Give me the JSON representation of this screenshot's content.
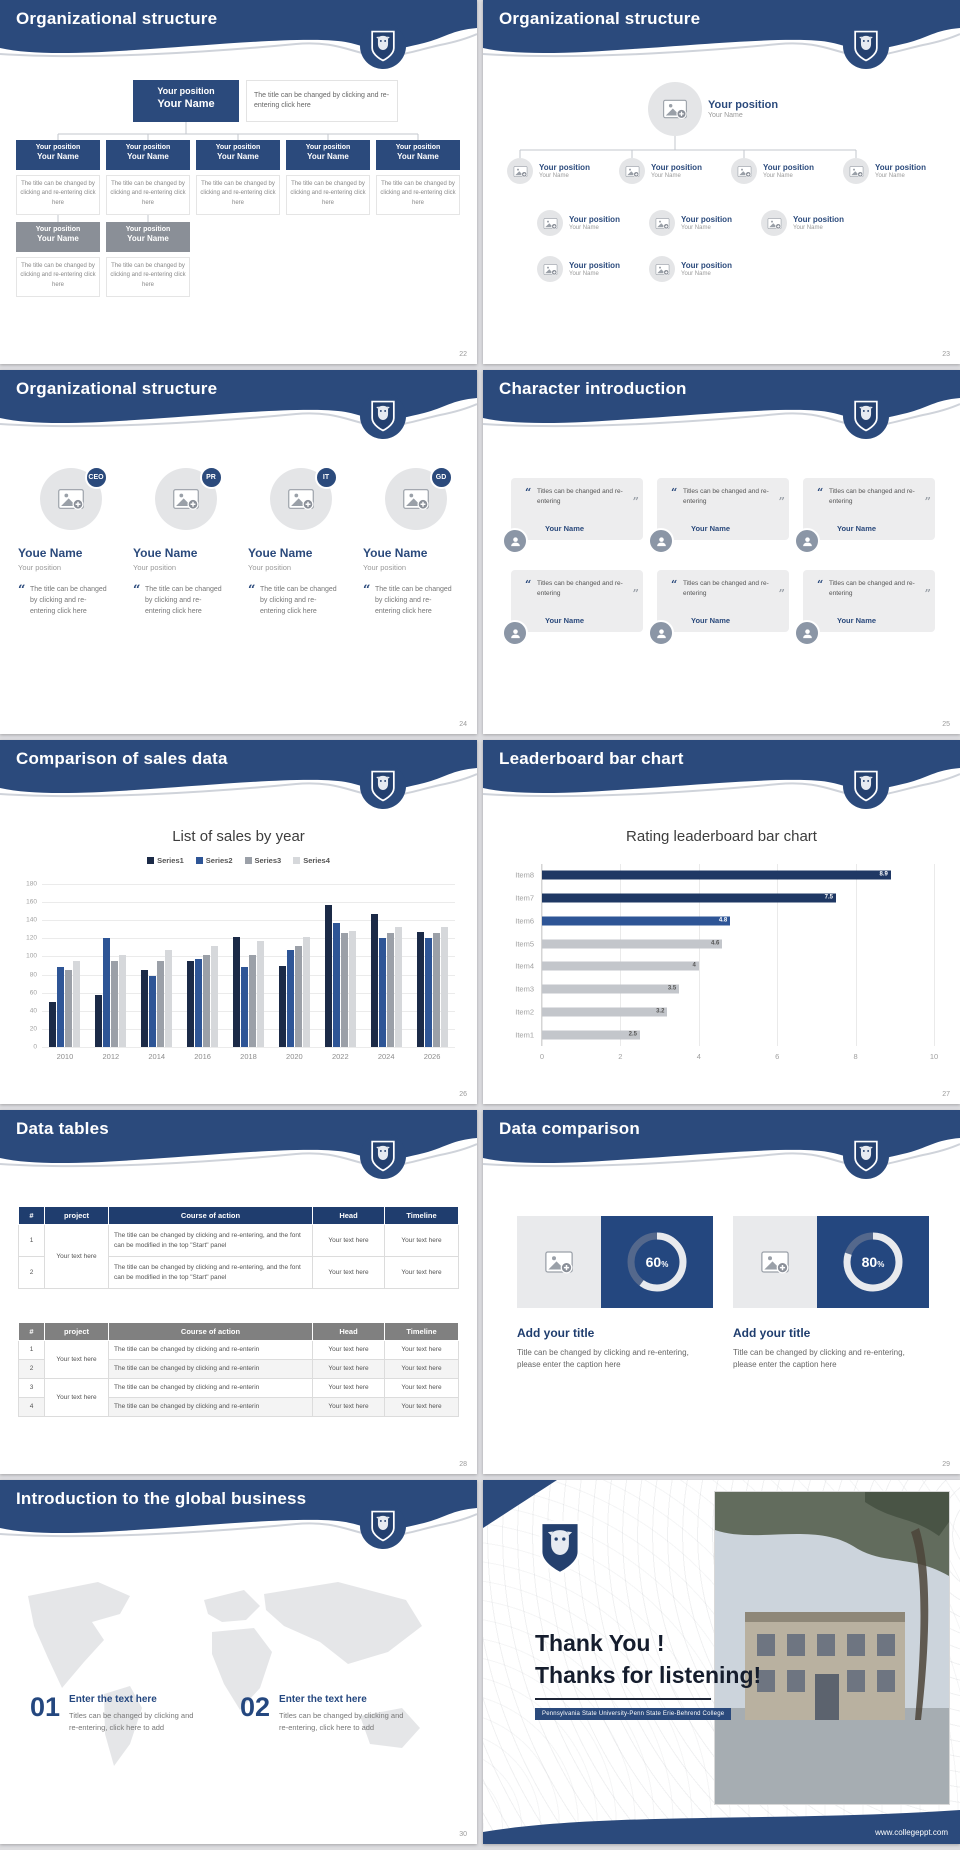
{
  "page": {
    "background": "#dcdcdf",
    "accent": "#2b4a7c",
    "gray": "#8a8f97"
  },
  "slides": {
    "s22": {
      "title": "Organizational structure",
      "page_num": "22",
      "root": {
        "position": "Your position",
        "name": "Your Name"
      },
      "root_note": "The title can be changed by clicking and re-entering click here",
      "node": {
        "position": "Your position",
        "name": "Your Name"
      },
      "note": "The title can be changed by clicking and re-entering click here"
    },
    "s23": {
      "title": "Organizational structure",
      "page_num": "23",
      "node": {
        "position": "Your position",
        "name": "Your Name"
      }
    },
    "s24": {
      "title": "Organizational structure",
      "page_num": "24",
      "badges": [
        "CEO",
        "PR",
        "IT",
        "GD"
      ],
      "name": "Youe Name",
      "position": "Your position",
      "note": "The title can be changed by clicking and re-entering click here"
    },
    "s25": {
      "title": "Character introduction",
      "page_num": "25",
      "card_text": "Titles can be changed and re-entering",
      "card_name": "Your Name"
    },
    "s26": {
      "title": "Comparison of sales data",
      "page_num": "26",
      "chart_data": {
        "type": "bar",
        "title": "List of sales by year",
        "categories": [
          "2010",
          "2012",
          "2014",
          "2016",
          "2018",
          "2020",
          "2022",
          "2024",
          "2026"
        ],
        "series": [
          {
            "name": "Series1",
            "color": "#1b2a47",
            "values": [
              50,
              57,
              85,
              95,
              122,
              90,
              157,
              147,
              127
            ]
          },
          {
            "name": "Series2",
            "color": "#2e5596",
            "values": [
              88,
              120,
              78,
              97,
              88,
              107,
              137,
              120,
              120
            ]
          },
          {
            "name": "Series3",
            "color": "#9ba0a8",
            "values": [
              85,
              95,
              95,
              102,
              102,
              112,
              126,
              126,
              126
            ]
          },
          {
            "name": "Series4",
            "color": "#d6d8db",
            "values": [
              95,
              102,
              107,
              112,
              117,
              122,
              128,
              132,
              132
            ]
          }
        ],
        "ylim": [
          0,
          180
        ],
        "yticks": [
          0,
          20,
          40,
          60,
          80,
          100,
          120,
          140,
          160,
          180
        ],
        "legend_position": "top",
        "grid": true
      }
    },
    "s27": {
      "title": "Leaderboard bar chart",
      "page_num": "27",
      "chart_data": {
        "type": "hbar",
        "title": "Rating leaderboard bar chart",
        "categories": [
          "Item8",
          "Item7",
          "Item6",
          "Item5",
          "Item4",
          "Item3",
          "Item2",
          "Item1"
        ],
        "values": [
          8.9,
          7.5,
          4.8,
          4.6,
          4,
          3.5,
          3.2,
          2.5
        ],
        "bar_colors": [
          "#1f3864",
          "#1f3864",
          "#2e5596",
          "#c3c6cb",
          "#c3c6cb",
          "#c3c6cb",
          "#c3c6cb",
          "#c3c6cb"
        ],
        "xlim": [
          0,
          10
        ],
        "xticks": [
          0,
          2,
          4,
          6,
          8,
          10
        ],
        "grid": true
      }
    },
    "s28": {
      "title": "Data tables",
      "page_num": "28",
      "table1": {
        "headers": [
          "#",
          "project",
          "Course of action",
          "Head",
          "Timeline"
        ],
        "project": "Your text here",
        "rows": [
          {
            "num": "1",
            "course": "The title can be changed by clicking and re-entering, and the font can be modified in the top \"Start\" panel",
            "head": "Your text here",
            "timeline": "Your text here"
          },
          {
            "num": "2",
            "course": "The title can be changed by clicking and re-entering, and the font can be modified in the top \"Start\" panel",
            "head": "Your text here",
            "timeline": "Your text here"
          }
        ]
      },
      "table2": {
        "headers": [
          "#",
          "project",
          "Course of action",
          "Head",
          "Timeline"
        ],
        "project": "Your text here",
        "rows": [
          {
            "num": "1",
            "course": "The title can be changed by clicking and re-enterin",
            "head": "Your text here",
            "timeline": "Your text here"
          },
          {
            "num": "2",
            "course": "The title can be changed by clicking and re-enterin",
            "head": "Your text here",
            "timeline": "Your text here"
          },
          {
            "num": "3",
            "course": "The title can be changed by clicking and re-enterin",
            "head": "Your text here",
            "timeline": "Your text here"
          },
          {
            "num": "4",
            "course": "The title can be changed by clicking and re-enterin",
            "head": "Your text here",
            "timeline": "Your text here"
          }
        ]
      }
    },
    "s29": {
      "title": "Data comparison",
      "page_num": "29",
      "cards": [
        {
          "percent": 60,
          "title": "Add your title",
          "caption": "Title can be changed by clicking and re-entering, please enter the caption here"
        },
        {
          "percent": 80,
          "title": "Add your title",
          "caption": "Title can be changed by clicking and re-entering, please enter the caption here"
        }
      ]
    },
    "s30": {
      "title": "Introduction to the global business",
      "page_num": "30",
      "items": [
        {
          "num": "01",
          "title": "Enter the text here",
          "text": "Titles can be changed by clicking and re-entering, click here to add"
        },
        {
          "num": "02",
          "title": "Enter the text here",
          "text": "Titles can be changed by clicking and re-entering, click here to add"
        }
      ]
    },
    "s31": {
      "title_line1": "Thank You !",
      "title_line2": "Thanks for listening!",
      "subtitle": "Pennsylvania State University-Penn State Erie-Behrend College",
      "footer_url": "www.collegeppt.com"
    }
  }
}
